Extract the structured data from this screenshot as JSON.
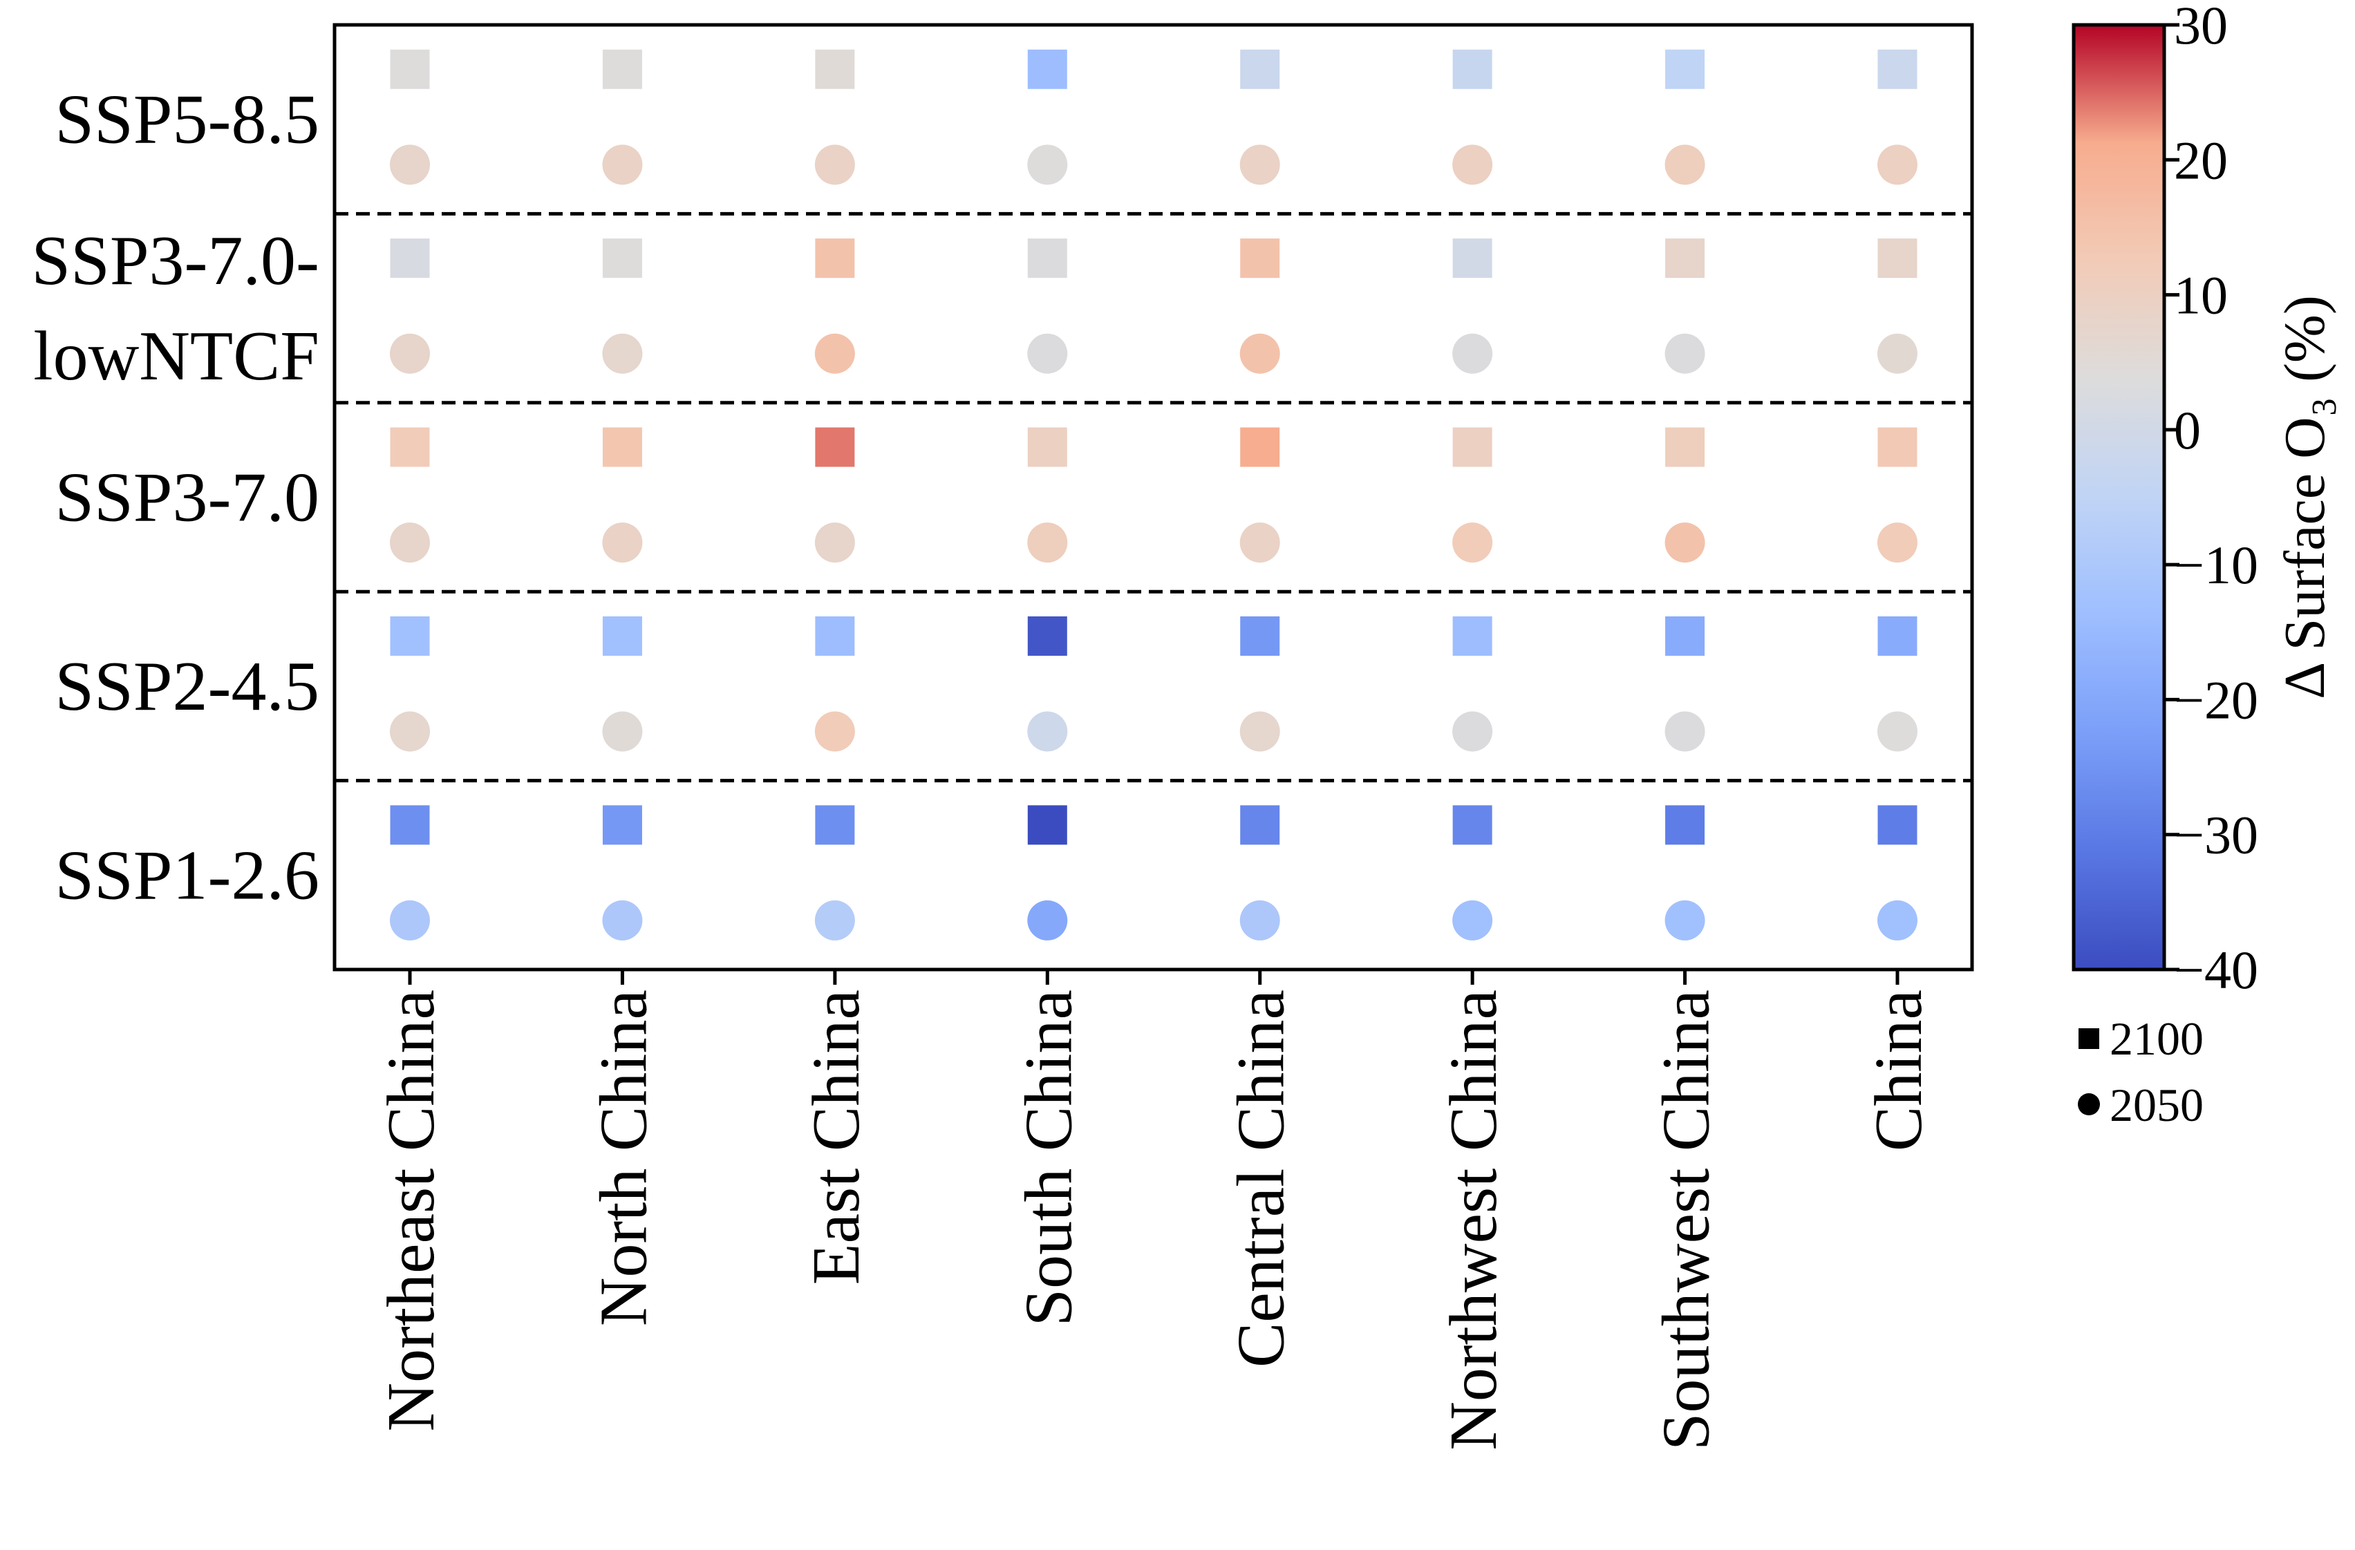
{
  "chart_data": {
    "type": "heatmap",
    "categories": [
      "Northeast China",
      "North China",
      "East China",
      "South China",
      "Central China",
      "Northwest China",
      "Southwest China",
      "China"
    ],
    "scenarios": [
      {
        "lines": [
          "SSP5-8.5"
        ]
      },
      {
        "lines": [
          "SSP3-7.0-",
          "lowNTCF"
        ]
      },
      {
        "lines": [
          "SSP3-7.0"
        ]
      },
      {
        "lines": [
          "SSP2-4.5"
        ]
      },
      {
        "lines": [
          "SSP1-2.6"
        ]
      }
    ],
    "series": [
      {
        "name": "2100",
        "marker": "square",
        "values": [
          [
            4,
            4,
            5,
            -14,
            -2,
            -3,
            -5,
            -2
          ],
          [
            2,
            4,
            15,
            3,
            15,
            0,
            8,
            8
          ],
          [
            12,
            14,
            24,
            10,
            21,
            10,
            11,
            13
          ],
          [
            -13,
            -13,
            -14,
            -38,
            -24,
            -14,
            -19,
            -19
          ],
          [
            -26,
            -24,
            -26,
            -40,
            -28,
            -28,
            -30,
            -30
          ]
        ]
      },
      {
        "name": "2050",
        "marker": "circle",
        "values": [
          [
            8,
            9,
            9,
            4,
            9,
            10,
            11,
            10
          ],
          [
            8,
            7,
            15,
            3,
            15,
            3,
            3,
            6
          ],
          [
            8,
            9,
            8,
            11,
            9,
            12,
            15,
            12
          ],
          [
            7,
            5,
            12,
            -1,
            7,
            3,
            3,
            4
          ],
          [
            -10,
            -10,
            -8,
            -20,
            -10,
            -13,
            -13,
            -13
          ]
        ]
      }
    ],
    "colorbar": {
      "label": "Δ Surface O₃ (%)",
      "range": [
        -40,
        30
      ],
      "ticks": [
        -40,
        -30,
        -20,
        -10,
        0,
        10,
        20,
        30
      ],
      "tick_labels": [
        "−40",
        "−30",
        "−20",
        "−10",
        "0",
        "10",
        "20",
        "30"
      ],
      "colormap": "coolwarm"
    },
    "legend": {
      "position": "below colorbar",
      "entries": [
        {
          "marker": "square",
          "label": "2100"
        },
        {
          "marker": "circle",
          "label": "2050"
        }
      ]
    },
    "grid": false
  }
}
